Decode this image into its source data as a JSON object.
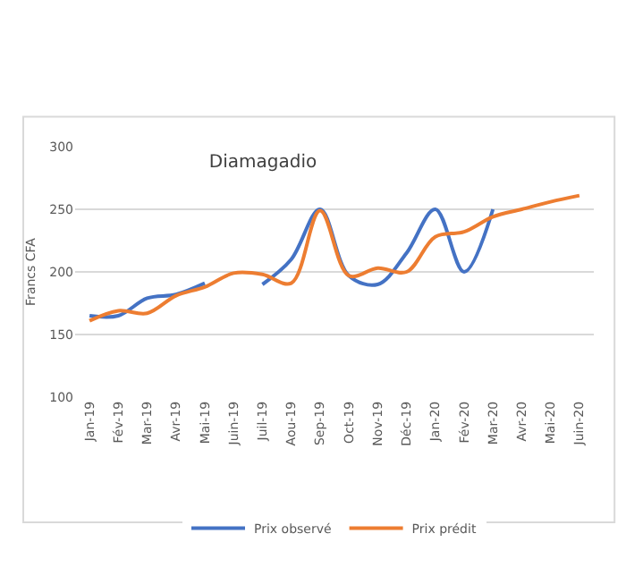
{
  "chart_data": {
    "type": "line",
    "title": "Diamagadio",
    "ylabel": "Francs CFA",
    "categories": [
      "Jan-19",
      "Fév-19",
      "Mar-19",
      "Avr-19",
      "Mai-19",
      "Juin-19",
      "Juil-19",
      "Aou-19",
      "Sep-19",
      "Oct-19",
      "Nov-19",
      "Déc-19",
      "Jan-20",
      "Fév-20",
      "Mar-20",
      "Avr-20",
      "Mai-20",
      "Juin-20"
    ],
    "series": [
      {
        "name": "Prix observé",
        "color": "#4472c4",
        "values": [
          165,
          165,
          179,
          182,
          191,
          null,
          190,
          210,
          250,
          197,
          190,
          215,
          250,
          200,
          250,
          null,
          null,
          null
        ]
      },
      {
        "name": "Prix prédit",
        "color": "#ed7d31",
        "values": [
          161,
          169,
          167,
          181,
          188,
          199,
          198,
          191,
          249,
          197,
          203,
          200,
          228,
          232,
          244,
          250,
          256,
          261
        ]
      }
    ],
    "ylim": [
      100,
      300
    ],
    "yticks": [
      100,
      150,
      200,
      250,
      300
    ],
    "grid": "y",
    "legend": "bottom",
    "marker": "none",
    "line_style": "solid"
  }
}
